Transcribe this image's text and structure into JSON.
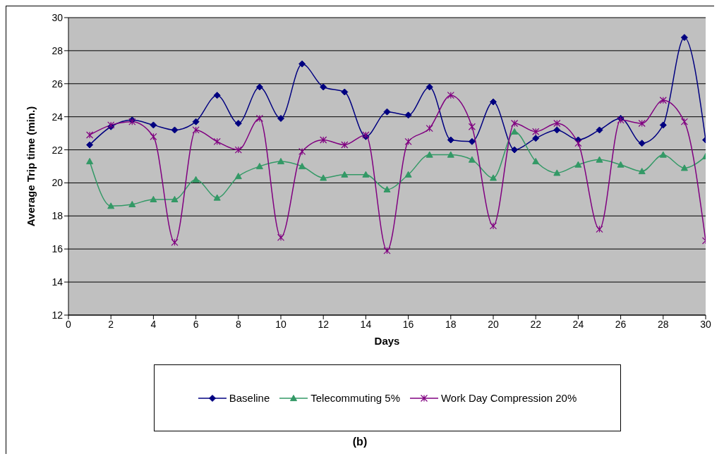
{
  "chart_data": {
    "type": "line",
    "title": "(b)",
    "xlabel": "Days",
    "ylabel": "Average Trip time (min.)",
    "x": [
      1,
      2,
      3,
      4,
      5,
      6,
      7,
      8,
      9,
      10,
      11,
      12,
      13,
      14,
      15,
      16,
      17,
      18,
      19,
      20,
      21,
      22,
      23,
      24,
      25,
      26,
      27,
      28,
      29,
      30
    ],
    "series": [
      {
        "name": "Baseline",
        "color": "#000080",
        "marker": "diamond",
        "values": [
          22.3,
          23.4,
          23.8,
          23.5,
          23.2,
          23.7,
          25.3,
          23.6,
          25.8,
          23.9,
          27.2,
          25.8,
          25.5,
          22.8,
          24.3,
          24.1,
          25.8,
          22.6,
          22.5,
          24.9,
          22.0,
          22.7,
          23.2,
          22.6,
          23.2,
          23.9,
          22.4,
          23.5,
          28.8,
          22.6
        ]
      },
      {
        "name": "Telecommuting 5%",
        "color": "#339966",
        "marker": "triangle",
        "values": [
          21.3,
          18.6,
          18.7,
          19.0,
          19.0,
          20.2,
          19.1,
          20.4,
          21.0,
          21.3,
          21.0,
          20.3,
          20.5,
          20.5,
          19.6,
          20.5,
          21.7,
          21.7,
          21.4,
          20.3,
          23.1,
          21.3,
          20.6,
          21.1,
          21.4,
          21.1,
          20.7,
          21.7,
          20.9,
          21.6
        ]
      },
      {
        "name": "Work Day Compression 20%",
        "color": "#800080",
        "marker": "cross",
        "values": [
          22.9,
          23.5,
          23.7,
          22.8,
          16.4,
          23.2,
          22.5,
          22.0,
          23.9,
          16.7,
          21.9,
          22.6,
          22.3,
          22.9,
          15.9,
          22.5,
          23.3,
          25.3,
          23.4,
          17.4,
          23.6,
          23.1,
          23.6,
          22.4,
          17.2,
          23.8,
          23.6,
          25.0,
          23.7,
          16.5
        ]
      }
    ],
    "xlim": [
      0,
      30
    ],
    "xticks": [
      0,
      2,
      4,
      6,
      8,
      10,
      12,
      14,
      16,
      18,
      20,
      22,
      24,
      26,
      28,
      30
    ],
    "ylim": [
      12,
      30
    ],
    "yticks": [
      12,
      14,
      16,
      18,
      20,
      22,
      24,
      26,
      28,
      30
    ],
    "grid": "y",
    "legend": "bottom",
    "line_style": "solid"
  }
}
